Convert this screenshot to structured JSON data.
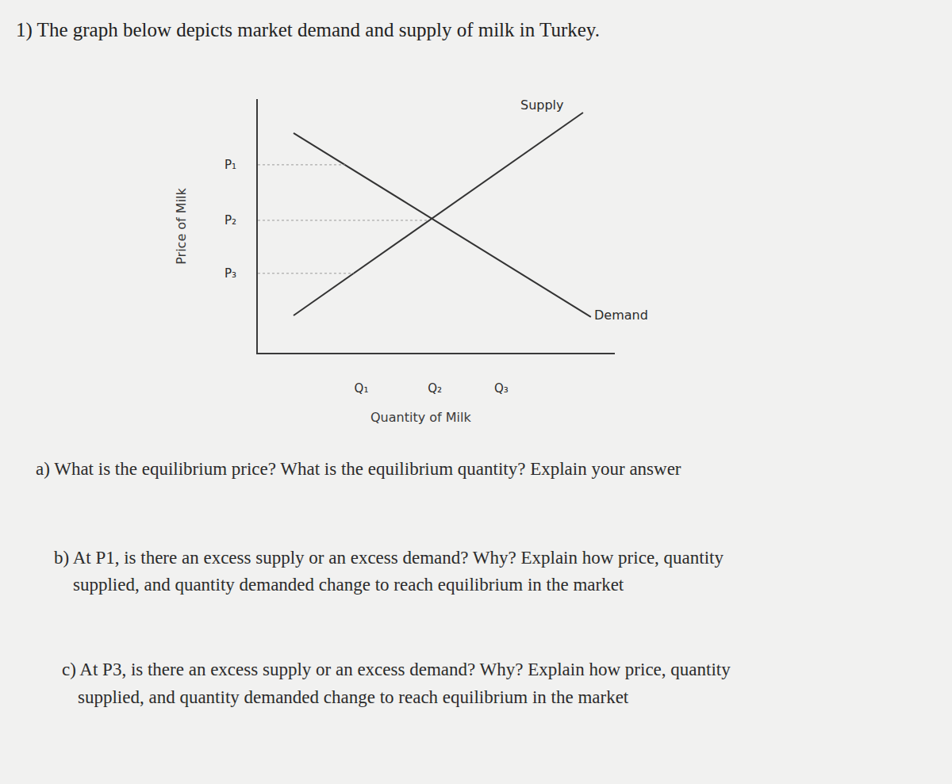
{
  "heading": "1) The graph below depicts market demand and supply of milk in Turkey.",
  "chart_data": {
    "type": "line",
    "x_label": "Quantity of Milk",
    "y_label": "Price of Milk",
    "xlim": [
      0,
      10
    ],
    "ylim": [
      0,
      10
    ],
    "xticks": [
      {
        "value": 2.9,
        "label": "Q₁"
      },
      {
        "value": 4.96,
        "label": "Q₂"
      },
      {
        "value": 6.82,
        "label": "Q₃"
      }
    ],
    "yticks": [
      {
        "value": 7.41,
        "label": "P₁"
      },
      {
        "value": 5.22,
        "label": "P₂"
      },
      {
        "value": 3.13,
        "label": "P₃"
      }
    ],
    "grid": false,
    "series": [
      {
        "name": "Supply",
        "color": "#333333",
        "x": [
          1.0,
          9.11
        ],
        "values": [
          1.47,
          9.47
        ]
      },
      {
        "name": "Demand",
        "color": "#333333",
        "x": [
          1.0,
          9.33
        ],
        "values": [
          8.66,
          1.41
        ]
      }
    ]
  },
  "questions": [
    {
      "lines": [
        "a) What is the equilibrium price? What is the equilibrium quantity? Explain your answer"
      ]
    },
    {
      "lines": [
        "b) At P1, is there an excess supply or an excess demand? Why? Explain how price, quantity",
        "supplied, and quantity demanded change to reach equilibrium in the market"
      ]
    },
    {
      "lines": [
        "c) At P3, is there an excess supply or an excess demand? Why? Explain how price, quantity",
        "supplied, and quantity demanded change to reach equilibrium in the market"
      ]
    }
  ]
}
